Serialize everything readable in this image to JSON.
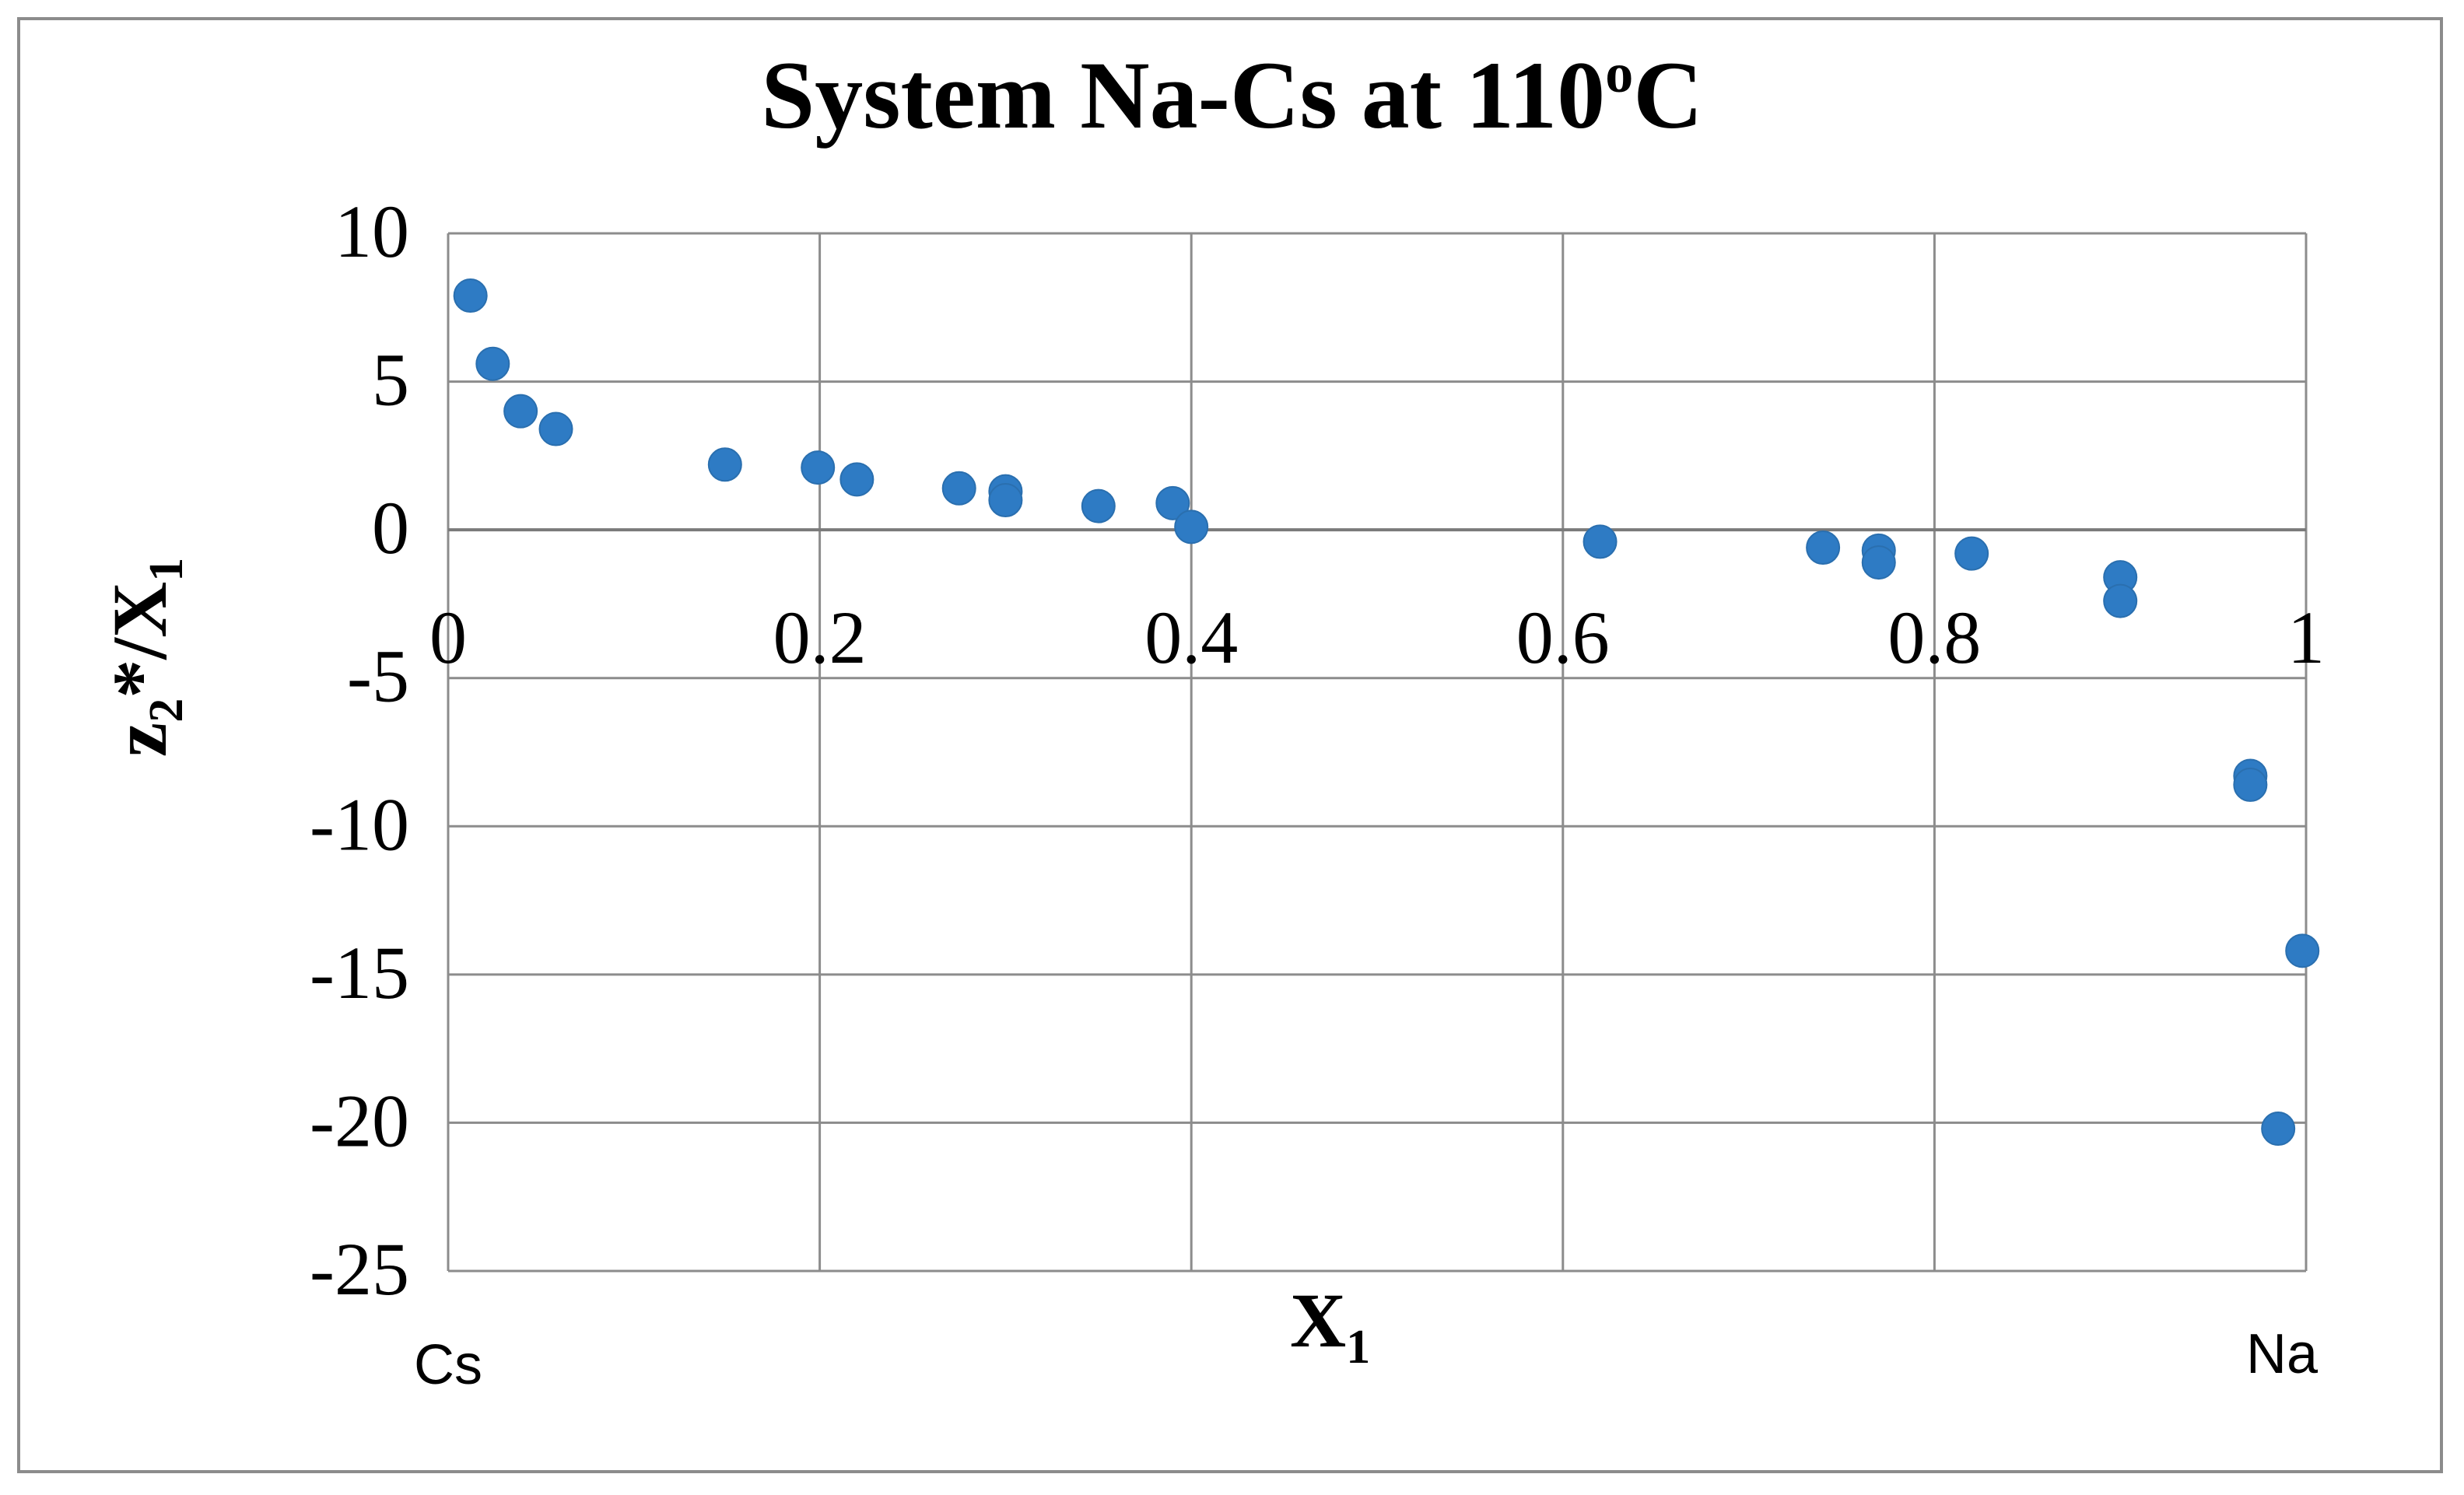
{
  "title": "System Na-Cs   at  110",
  "title_sup": "o",
  "title_end": "C",
  "axes": {
    "x_label": "X",
    "x_label_sub": "1",
    "y_label": "z",
    "y_label_sub": "2",
    "y_label_mid": "*/X",
    "y_label_sub2": "1",
    "left_end_label": "Cs",
    "right_end_label": "Na"
  },
  "chart_data": {
    "type": "scatter",
    "xlim": [
      0,
      1
    ],
    "ylim": [
      -25,
      10
    ],
    "x_ticks": [
      "0",
      "0.2",
      "0.4",
      "0.6",
      "0.8",
      "1"
    ],
    "x_tick_values": [
      0,
      0.2,
      0.4,
      0.6,
      0.8,
      1
    ],
    "y_ticks": [
      "10",
      "5",
      "0",
      "-5",
      "-10",
      "-15",
      "-20",
      "-25"
    ],
    "y_tick_values": [
      10,
      5,
      0,
      -5,
      -10,
      -15,
      -20,
      -25
    ],
    "grid": true,
    "marker_color": "#2e7bc4",
    "points": [
      {
        "x": 0.012,
        "y": 7.9
      },
      {
        "x": 0.024,
        "y": 5.6
      },
      {
        "x": 0.039,
        "y": 4.0
      },
      {
        "x": 0.058,
        "y": 3.4
      },
      {
        "x": 0.149,
        "y": 2.2
      },
      {
        "x": 0.199,
        "y": 2.1
      },
      {
        "x": 0.22,
        "y": 1.7
      },
      {
        "x": 0.275,
        "y": 1.4
      },
      {
        "x": 0.3,
        "y": 1.3
      },
      {
        "x": 0.3,
        "y": 1.0
      },
      {
        "x": 0.35,
        "y": 0.8
      },
      {
        "x": 0.39,
        "y": 0.9
      },
      {
        "x": 0.4,
        "y": 0.1
      },
      {
        "x": 0.62,
        "y": -0.4
      },
      {
        "x": 0.74,
        "y": -0.6
      },
      {
        "x": 0.77,
        "y": -0.7
      },
      {
        "x": 0.77,
        "y": -1.1
      },
      {
        "x": 0.82,
        "y": -0.8
      },
      {
        "x": 0.9,
        "y": -1.6
      },
      {
        "x": 0.9,
        "y": -2.4
      },
      {
        "x": 0.97,
        "y": -8.3
      },
      {
        "x": 0.97,
        "y": -8.6
      },
      {
        "x": 0.985,
        "y": -20.2
      },
      {
        "x": 0.998,
        "y": -14.2
      }
    ]
  }
}
